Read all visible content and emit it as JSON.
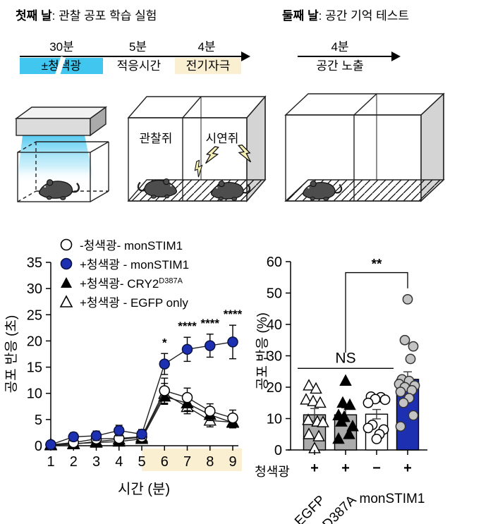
{
  "figure": {
    "day1": {
      "title_bold": "첫째 날",
      "title_rest": ": 관찰 공포 학습 실험",
      "timeline": {
        "segments": [
          {
            "duration": "30분",
            "label": "±청색광",
            "bg": "#41C7EF"
          },
          {
            "duration": "5분",
            "label": "적응시간",
            "bg": "#FFFFFF"
          },
          {
            "duration": "4분",
            "label": "전기자극",
            "bg": "#FAEFD0"
          }
        ]
      },
      "chambers": {
        "observer": "관찰쥐",
        "demonstrator": "시연쥐"
      }
    },
    "day2": {
      "title_bold": "둘째 날",
      "title_rest": ": 공간 기억 테스트",
      "timeline": {
        "segments": [
          {
            "duration": "4분",
            "label": "공간 노출",
            "bg": "#FFFFFF"
          }
        ]
      }
    }
  },
  "legend": {
    "items": [
      {
        "label": "-청색광- monSTIM1",
        "sup": "",
        "marker": "open-circle"
      },
      {
        "label": "+청색광 - monSTIM1",
        "sup": "",
        "marker": "filled-circle"
      },
      {
        "label": "+청색광- CRY2",
        "sup": "D387A",
        "marker": "filled-triangle"
      },
      {
        "label": "+청색광 - EGFP only",
        "sup": "",
        "marker": "open-triangle"
      }
    ]
  },
  "colors": {
    "blue": "#1E30B2",
    "blue_stroke": "#0A1240",
    "cyan": "#41C7EF",
    "cream": "#FAEFD0",
    "bar_gray": "#ABABAB",
    "point_gray": "#C4C4C4"
  },
  "chart_data": [
    {
      "id": "observational-fear-timecourse",
      "type": "line",
      "title": "",
      "xlabel": "시간 (분)",
      "ylabel": "공포 반응 (초)",
      "x": [
        1,
        2,
        3,
        4,
        5,
        6,
        7,
        8,
        9
      ],
      "ylim": [
        0,
        35
      ],
      "yticks": [
        0,
        5,
        10,
        15,
        20,
        25,
        30,
        35
      ],
      "shaded_x_region": {
        "from": 5,
        "to": 9.4,
        "color": "#FAEFD0",
        "meaning": "전기자극 구간"
      },
      "series": [
        {
          "name": "-청색광- monSTIM1",
          "marker": "open-circle",
          "values": [
            0.2,
            0.6,
            1.3,
            1.4,
            1.7,
            10.5,
            9.2,
            6.6,
            5.3
          ],
          "errors": [
            0.4,
            0.5,
            0.6,
            0.7,
            0.7,
            2.4,
            1.8,
            1.4,
            1.5
          ]
        },
        {
          "name": "+청색광 - monSTIM1",
          "marker": "filled-circle",
          "values": [
            0.2,
            1.7,
            1.9,
            2.9,
            2.2,
            15.6,
            18.4,
            19.1,
            19.8
          ],
          "errors": [
            0.3,
            0.8,
            0.9,
            1.0,
            0.9,
            2.0,
            2.3,
            2.2,
            3.2
          ]
        },
        {
          "name": "+청색광- CRY2 D387A",
          "marker": "filled-triangle",
          "values": [
            0.2,
            0.4,
            0.6,
            0.8,
            1.3,
            9.4,
            8.1,
            5.9,
            4.4
          ],
          "errors": [
            0.3,
            0.4,
            0.5,
            0.5,
            0.6,
            1.4,
            1.4,
            1.1,
            1.0
          ]
        },
        {
          "name": "+청색광 - EGFP only",
          "marker": "open-triangle",
          "values": [
            0.1,
            0.3,
            0.8,
            1.2,
            1.6,
            9.9,
            7.4,
            4.8,
            4.5
          ],
          "errors": [
            0.2,
            0.4,
            0.5,
            0.6,
            0.7,
            2.0,
            1.3,
            1.2,
            1.0
          ]
        }
      ],
      "significance": [
        {
          "x": 6,
          "label": "*"
        },
        {
          "x": 7,
          "label": "****"
        },
        {
          "x": 8,
          "label": "****"
        },
        {
          "x": 9,
          "label": "****"
        }
      ]
    },
    {
      "id": "spatial-memory-freezing",
      "type": "bar",
      "title": "",
      "ylabel": "공포 반응 (%)",
      "ylim": [
        0,
        60
      ],
      "yticks": [
        0,
        10,
        20,
        30,
        40,
        50,
        60
      ],
      "x_axis_row_label": "청색광",
      "bars": [
        {
          "group": "EGFP",
          "bluelight": "+",
          "value": 11.2,
          "error": 2.0,
          "color": "#ABABAB",
          "marker": "open-triangle",
          "points": [
            [
              -8,
              20.5
            ],
            [
              2,
              19.5
            ],
            [
              -12,
              16
            ],
            [
              -2,
              15.5
            ],
            [
              8,
              15
            ],
            [
              -9,
              9.5
            ],
            [
              4,
              9
            ],
            [
              12,
              8.8
            ],
            [
              -8,
              5
            ],
            [
              6,
              4.3
            ],
            [
              0,
              0.5
            ]
          ]
        },
        {
          "group": "D387A",
          "bluelight": "+",
          "value": 11.2,
          "error": 2.2,
          "color": "#ABABAB",
          "marker": "filled-triangle",
          "points": [
            [
              0,
              22
            ],
            [
              -4,
              15
            ],
            [
              6,
              14.3
            ],
            [
              -10,
              11
            ],
            [
              -2,
              10.5
            ],
            [
              -6,
              9
            ],
            [
              10,
              7.5
            ],
            [
              5,
              5
            ],
            [
              -10,
              3.5
            ]
          ]
        },
        {
          "group": "monSTIM1",
          "bluelight": "−",
          "value": 11.4,
          "error": 1.5,
          "color": "#FFFFFF",
          "marker": "open-circle",
          "points": [
            [
              -8,
              17
            ],
            [
              6,
              16.8
            ],
            [
              -2,
              16.2
            ],
            [
              12,
              16
            ],
            [
              -12,
              15
            ],
            [
              -6,
              8
            ],
            [
              -12,
              7
            ],
            [
              10,
              6.5
            ],
            [
              4,
              5
            ],
            [
              0,
              3.5
            ]
          ]
        },
        {
          "group": "monSTIM1",
          "bluelight": "+",
          "value": 22.5,
          "error": 2.4,
          "color": "#1E30B2",
          "marker": "gray-circle",
          "points": [
            [
              0,
              48
            ],
            [
              -4,
              35
            ],
            [
              8,
              33
            ],
            [
              4,
              29
            ],
            [
              -8,
              22.5
            ],
            [
              2,
              22
            ],
            [
              -12,
              21
            ],
            [
              10,
              20.5
            ],
            [
              -4,
              20
            ],
            [
              6,
              19
            ],
            [
              -10,
              18.5
            ],
            [
              2,
              16.5
            ],
            [
              -6,
              15
            ],
            [
              8,
              11
            ],
            [
              -10,
              7.5
            ]
          ]
        }
      ],
      "group_axis_labels": [
        {
          "text": "EGFP",
          "rotated": true
        },
        {
          "text": "D387A",
          "rotated": true
        },
        {
          "text": "monSTIM1",
          "rotated": false
        }
      ],
      "annotations": [
        {
          "type": "line",
          "label": "NS",
          "bar_from": 0,
          "bar_to": 2,
          "y": 26
        },
        {
          "type": "bracket",
          "label": "**",
          "bar_from": 1,
          "bar_to": 3,
          "y_top": 56.5,
          "y_from": 31,
          "y_to": 51.5
        }
      ]
    }
  ]
}
